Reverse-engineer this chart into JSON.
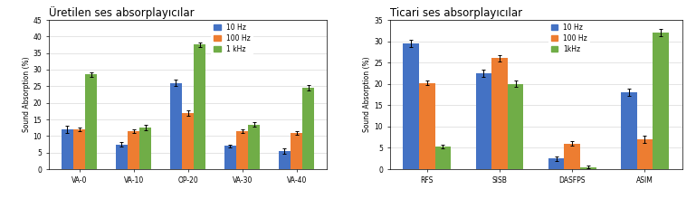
{
  "chart1": {
    "title": "Üretilen ses absorplayıcılar",
    "categories": [
      "VA-0",
      "VA-10",
      "OP-20",
      "VA-30",
      "VA-40"
    ],
    "series": {
      "10 Hz": [
        12.0,
        7.5,
        26.0,
        7.0,
        5.5
      ],
      "100 Hz": [
        12.0,
        11.5,
        17.0,
        11.5,
        11.0
      ],
      "1 kHz": [
        28.5,
        12.5,
        37.5,
        13.5,
        24.5
      ]
    },
    "errors": {
      "10 Hz": [
        1.0,
        0.8,
        1.0,
        0.5,
        0.8
      ],
      "100 Hz": [
        0.5,
        0.5,
        0.8,
        0.5,
        0.5
      ],
      "1 kHz": [
        0.8,
        0.8,
        0.8,
        0.8,
        0.8
      ]
    },
    "ylim": [
      0,
      45
    ],
    "yticks": [
      0,
      5,
      10,
      15,
      20,
      25,
      30,
      35,
      40,
      45
    ],
    "ylabel": "Sound Absorption (%)",
    "legend_labels": [
      "10 Hz",
      "100 Hz",
      "1 kHz"
    ]
  },
  "chart2": {
    "title": "Ticari ses absorplayıcılar",
    "categories": [
      "RFS",
      "SISB",
      "DASFPS",
      "ASIM"
    ],
    "series": {
      "10 Hz": [
        29.5,
        22.5,
        2.5,
        18.0
      ],
      "100 Hz": [
        20.2,
        26.0,
        6.0,
        7.0
      ],
      "1kHz": [
        5.3,
        20.0,
        0.5,
        32.0
      ]
    },
    "errors": {
      "10 Hz": [
        0.8,
        0.8,
        0.5,
        0.8
      ],
      "100 Hz": [
        0.5,
        0.8,
        0.5,
        0.8
      ],
      "1kHz": [
        0.5,
        0.8,
        0.3,
        0.8
      ]
    },
    "ylim": [
      0,
      35
    ],
    "yticks": [
      0,
      5,
      10,
      15,
      20,
      25,
      30,
      35
    ],
    "ylabel": "Sound Absorption (%)",
    "legend_labels": [
      "10 Hz",
      "100 Hz",
      "1kHz"
    ]
  },
  "colors": {
    "10 Hz": "#4472C4",
    "100 Hz": "#ED7D31",
    "1 kHz": "#70AD47",
    "1kHz": "#70AD47"
  },
  "bar_width": 0.22,
  "background_color": "#FFFFFF",
  "grid_color": "#D9D9D9"
}
